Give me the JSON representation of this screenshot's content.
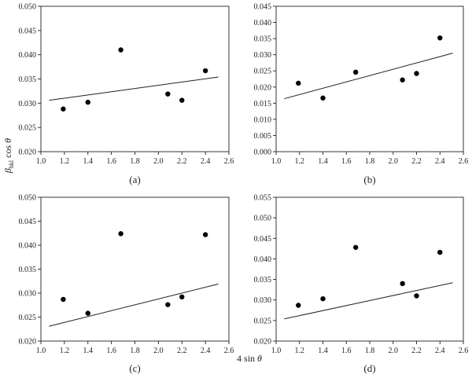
{
  "figure": {
    "ylabel": "βhkl cos θ",
    "xlabel": "4 sin θ"
  },
  "chart_data": [
    {
      "type": "scatter",
      "panel_label": "(a)",
      "xlim": [
        1.0,
        2.6
      ],
      "ylim": [
        0.02,
        0.05
      ],
      "xticks": [
        "1.0",
        "1.2",
        "1.4",
        "1.6",
        "1.8",
        "2.0",
        "2.2",
        "2.4",
        "2.6"
      ],
      "yticks": [
        "0.020",
        "0.025",
        "0.030",
        "0.035",
        "0.040",
        "0.045",
        "0.050"
      ],
      "points": [
        [
          1.19,
          0.0288
        ],
        [
          1.4,
          0.0302
        ],
        [
          1.68,
          0.041
        ],
        [
          2.08,
          0.0319
        ],
        [
          2.2,
          0.0306
        ],
        [
          2.4,
          0.0367
        ]
      ],
      "fit_line": [
        [
          1.07,
          0.0306
        ],
        [
          2.51,
          0.0354
        ]
      ],
      "grid": false
    },
    {
      "type": "scatter",
      "panel_label": "(b)",
      "xlim": [
        1.0,
        2.6
      ],
      "ylim": [
        0.0,
        0.045
      ],
      "xticks": [
        "1.0",
        "1.2",
        "1.4",
        "1.6",
        "1.8",
        "2.0",
        "2.2",
        "2.4",
        "2.6"
      ],
      "yticks": [
        "0.000",
        "0.005",
        "0.010",
        "0.015",
        "0.020",
        "0.025",
        "0.030",
        "0.035",
        "0.040",
        "0.045"
      ],
      "points": [
        [
          1.19,
          0.0212
        ],
        [
          1.4,
          0.0166
        ],
        [
          1.68,
          0.0246
        ],
        [
          2.08,
          0.0222
        ],
        [
          2.2,
          0.0242
        ],
        [
          2.4,
          0.0352
        ]
      ],
      "fit_line": [
        [
          1.07,
          0.0164
        ],
        [
          2.51,
          0.0305
        ]
      ],
      "grid": false
    },
    {
      "type": "scatter",
      "panel_label": "(c)",
      "xlim": [
        1.0,
        2.6
      ],
      "ylim": [
        0.02,
        0.05
      ],
      "xticks": [
        "1.0",
        "1.2",
        "1.4",
        "1.6",
        "1.8",
        "2.0",
        "2.2",
        "2.4",
        "2.6"
      ],
      "yticks": [
        "0.020",
        "0.025",
        "0.030",
        "0.035",
        "0.040",
        "0.045",
        "0.050"
      ],
      "points": [
        [
          1.19,
          0.0287
        ],
        [
          1.4,
          0.0258
        ],
        [
          1.68,
          0.0424
        ],
        [
          2.08,
          0.0276
        ],
        [
          2.2,
          0.0292
        ],
        [
          2.4,
          0.0422
        ]
      ],
      "fit_line": [
        [
          1.07,
          0.0231
        ],
        [
          2.51,
          0.0319
        ]
      ],
      "grid": false
    },
    {
      "type": "scatter",
      "panel_label": "(d)",
      "xlim": [
        1.0,
        2.6
      ],
      "ylim": [
        0.02,
        0.055
      ],
      "xticks": [
        "1.0",
        "1.2",
        "1.4",
        "1.6",
        "1.8",
        "2.0",
        "2.2",
        "2.4",
        "2.6"
      ],
      "yticks": [
        "0.020",
        "0.025",
        "0.030",
        "0.035",
        "0.040",
        "0.045",
        "0.050",
        "0.055"
      ],
      "points": [
        [
          1.19,
          0.0287
        ],
        [
          1.4,
          0.0303
        ],
        [
          1.68,
          0.0428
        ],
        [
          2.08,
          0.034
        ],
        [
          2.2,
          0.031
        ],
        [
          2.4,
          0.0416
        ]
      ],
      "fit_line": [
        [
          1.07,
          0.0254
        ],
        [
          2.51,
          0.0342
        ]
      ],
      "grid": false
    }
  ]
}
